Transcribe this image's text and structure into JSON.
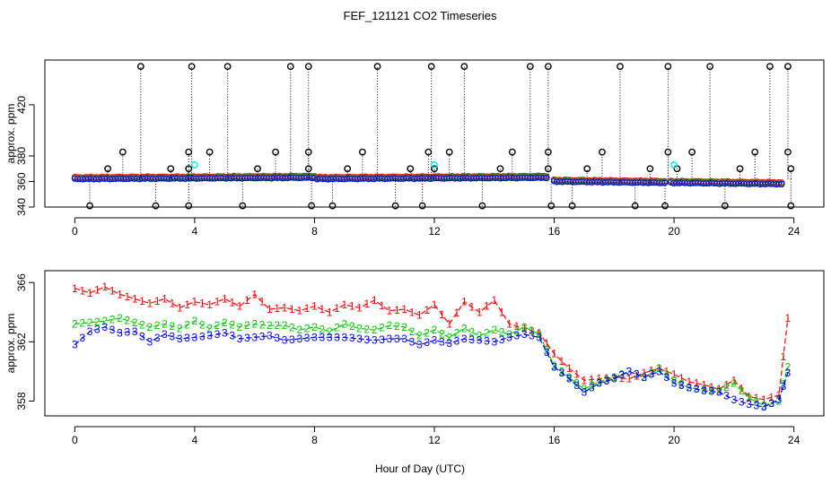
{
  "chart_data": [
    {
      "type": "scatter",
      "title": "FEF_121121  CO2 Timeseries",
      "xlabel": "",
      "ylabel": "approx. ppm",
      "xlim": [
        -1,
        25
      ],
      "ylim": [
        340,
        455
      ],
      "xticks": [
        0,
        4,
        8,
        12,
        16,
        20,
        24
      ],
      "yticks": [
        340,
        360,
        380,
        420
      ],
      "ytick_labels": [
        "340",
        "360",
        "380",
        "420"
      ],
      "x_range": [
        0,
        24
      ],
      "baseline_segments": [
        {
          "x": [
            0,
            8
          ],
          "y": [
            362,
            363
          ]
        },
        {
          "x": [
            8,
            15.8
          ],
          "y": [
            362,
            363
          ]
        },
        {
          "x": [
            16,
            19.7
          ],
          "y": [
            360,
            359
          ]
        },
        {
          "x": [
            19.9,
            23.6
          ],
          "y": [
            359,
            358
          ]
        }
      ],
      "spike_x": [
        2.2,
        3.9,
        5.1,
        7.2,
        7.8,
        10.1,
        11.9,
        13.0,
        15.2,
        15.8,
        18.2,
        19.8,
        21.2,
        23.2,
        23.8
      ],
      "spike_y": 450,
      "mid_spike_x": [
        1.6,
        3.8,
        4.5,
        6.7,
        7.8,
        9.6,
        11.8,
        12.5,
        14.6,
        15.8,
        17.6,
        19.8,
        20.6,
        22.7,
        23.8
      ],
      "mid_spike_y": 383,
      "low_spike_x": [
        0.5,
        2.7,
        3.8,
        5.6,
        7.9,
        8.6,
        10.7,
        11.6,
        13.6,
        15.9,
        16.6,
        18.7,
        19.7,
        21.7,
        23.9
      ],
      "low_spike_y": 341,
      "small_spike_x": [
        1.1,
        3.2,
        3.8,
        6.1,
        7.8,
        9.1,
        11.2,
        12.0,
        14.2,
        15.8,
        17.1,
        19.2,
        20.1,
        22.2,
        23.9
      ],
      "small_spike_y": 370,
      "cyan_x": [
        4.0,
        12.0,
        20.0
      ],
      "cyan_y": 373,
      "series": [
        {
          "name": "1",
          "color": "#ff0000"
        },
        {
          "name": "2",
          "color": "#00cd00"
        },
        {
          "name": "3",
          "color": "#0000ff"
        }
      ]
    },
    {
      "type": "line",
      "title": "",
      "xlabel": "Hour of Day (UTC)",
      "ylabel": "approx. ppm",
      "xlim": [
        -1,
        25
      ],
      "ylim": [
        357,
        366.8
      ],
      "xticks": [
        0,
        4,
        8,
        12,
        16,
        20,
        24
      ],
      "yticks": [
        358,
        362,
        366
      ],
      "ytick_labels": [
        "358",
        "362",
        "366"
      ],
      "hours": [
        0,
        0.5,
        1,
        1.5,
        2,
        2.5,
        3,
        3.5,
        4,
        4.5,
        5,
        5.5,
        6,
        6.5,
        7,
        7.5,
        8,
        8.5,
        9,
        9.5,
        10,
        10.5,
        11,
        11.5,
        12,
        12.5,
        13,
        13.5,
        14,
        14.5,
        15,
        15.5,
        16,
        16.5,
        17,
        17.5,
        18,
        18.5,
        19,
        19.5,
        20,
        20.5,
        21,
        21.5,
        22,
        22.5,
        23,
        23.5,
        23.8
      ],
      "series": [
        {
          "name": "1",
          "color": "#ff0000",
          "values": [
            365.6,
            365.3,
            365.7,
            365.2,
            364.9,
            364.6,
            364.9,
            364.3,
            364.7,
            364.5,
            364.9,
            364.4,
            365.2,
            364.2,
            364.3,
            364.1,
            364.4,
            364.0,
            364.5,
            364.3,
            364.8,
            364.1,
            364.2,
            363.8,
            364.5,
            363.2,
            364.7,
            364.0,
            364.8,
            363.2,
            362.9,
            362.6,
            361.2,
            360.2,
            359.4,
            359.5,
            359.6,
            359.5,
            359.9,
            360.2,
            359.8,
            359.3,
            359.1,
            358.8,
            359.4,
            358.3,
            358.1,
            358.4,
            363.6
          ]
        },
        {
          "name": "2",
          "color": "#00cd00",
          "values": [
            363.2,
            363.3,
            363.4,
            363.6,
            363.3,
            363.0,
            363.2,
            362.9,
            363.4,
            362.9,
            363.3,
            363.0,
            363.2,
            363.1,
            363.1,
            362.8,
            363.0,
            362.7,
            363.2,
            362.9,
            362.8,
            363.1,
            363.0,
            362.4,
            362.8,
            362.3,
            362.9,
            362.4,
            362.8,
            362.5,
            363.0,
            362.5,
            360.4,
            359.6,
            358.8,
            359.3,
            359.6,
            360.0,
            359.6,
            360.2,
            359.4,
            358.9,
            358.8,
            358.7,
            359.2,
            358.2,
            357.7,
            358.0,
            360.3
          ]
        },
        {
          "name": "3",
          "color": "#0000ff",
          "values": [
            361.8,
            362.7,
            363.0,
            362.6,
            362.7,
            362.0,
            362.5,
            362.2,
            362.3,
            362.4,
            362.6,
            362.2,
            362.3,
            362.4,
            362.1,
            362.2,
            362.3,
            362.3,
            362.3,
            362.2,
            362.1,
            362.2,
            362.2,
            361.8,
            362.1,
            361.9,
            362.2,
            362.1,
            362.0,
            362.3,
            362.5,
            362.3,
            360.3,
            359.5,
            358.6,
            359.2,
            359.5,
            360.0,
            359.6,
            360.0,
            359.2,
            358.9,
            358.7,
            358.6,
            358.1,
            357.8,
            357.6,
            358.1,
            359.9
          ]
        }
      ]
    }
  ]
}
